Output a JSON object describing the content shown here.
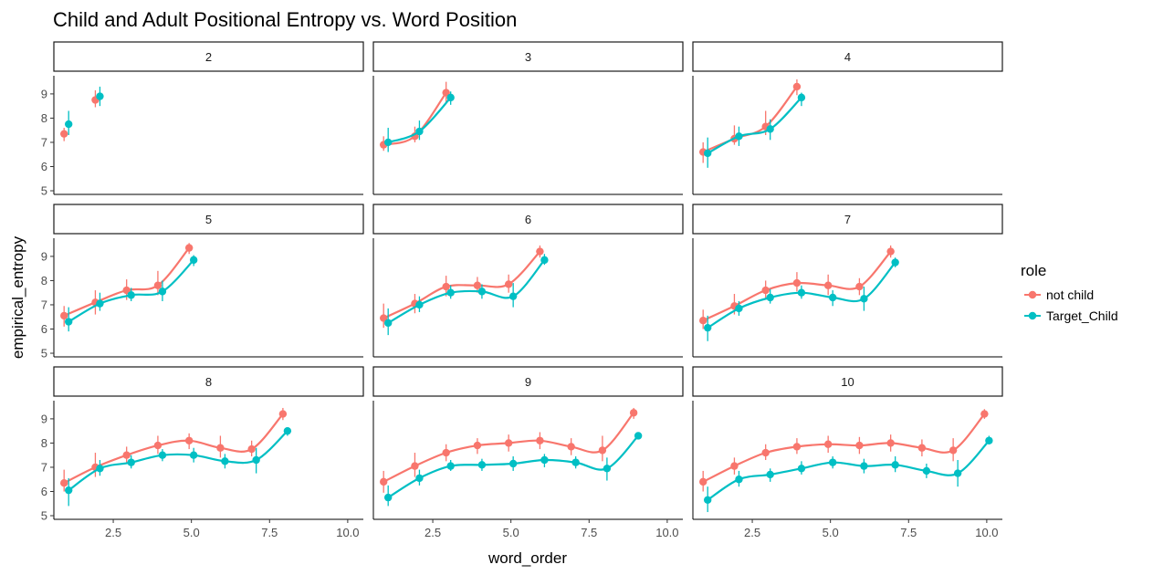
{
  "chart_data": {
    "type": "scatter",
    "title": "Child and Adult Positional Entropy vs. Word Position",
    "xlabel": "word_order",
    "ylabel": "empirical_entropy",
    "xlim": [
      0.6,
      10.5
    ],
    "ylim": [
      4.85,
      9.75
    ],
    "x_ticks": [
      "2.5",
      "5.0",
      "7.5",
      "10.0"
    ],
    "y_ticks": [
      "5",
      "6",
      "7",
      "8",
      "9"
    ],
    "legend": {
      "title": "role",
      "placement": "right"
    },
    "series_meta": [
      {
        "name": "not child",
        "color": "#F8766D"
      },
      {
        "name": "Target_Child",
        "color": "#00BFC4"
      }
    ],
    "panels": [
      {
        "label": "2",
        "series": [
          {
            "name": "not child",
            "points": [
              [
                1,
                7.35,
                7.05,
                7.6
              ],
              [
                2,
                8.75,
                8.45,
                9.15
              ]
            ]
          },
          {
            "name": "Target_Child",
            "points": [
              [
                1,
                7.75,
                7.3,
                8.3
              ],
              [
                2,
                8.9,
                8.5,
                9.3
              ]
            ]
          }
        ]
      },
      {
        "label": "3",
        "series": [
          {
            "name": "not child",
            "points": [
              [
                1,
                6.9,
                6.65,
                7.25
              ],
              [
                2,
                7.25,
                7.0,
                7.65
              ],
              [
                3,
                9.05,
                8.6,
                9.5
              ]
            ]
          },
          {
            "name": "Target_Child",
            "points": [
              [
                1,
                7.0,
                6.6,
                7.6
              ],
              [
                2,
                7.45,
                7.1,
                7.9
              ],
              [
                3,
                8.85,
                8.55,
                9.1
              ]
            ]
          }
        ]
      },
      {
        "label": "4",
        "series": [
          {
            "name": "not child",
            "points": [
              [
                1,
                6.6,
                6.15,
                7.0
              ],
              [
                2,
                7.15,
                6.9,
                7.7
              ],
              [
                3,
                7.65,
                7.3,
                8.3
              ],
              [
                4,
                9.3,
                8.95,
                9.6
              ]
            ]
          },
          {
            "name": "Target_Child",
            "points": [
              [
                1,
                6.55,
                5.95,
                7.2
              ],
              [
                2,
                7.25,
                6.85,
                7.65
              ],
              [
                3,
                7.55,
                7.1,
                7.95
              ],
              [
                4,
                8.85,
                8.5,
                9.05
              ]
            ]
          }
        ]
      },
      {
        "label": "5",
        "series": [
          {
            "name": "not child",
            "points": [
              [
                1,
                6.55,
                6.1,
                6.95
              ],
              [
                2,
                7.1,
                6.6,
                7.6
              ],
              [
                3,
                7.6,
                7.2,
                8.05
              ],
              [
                4,
                7.8,
                7.4,
                8.4
              ],
              [
                5,
                9.35,
                9.1,
                9.55
              ]
            ]
          },
          {
            "name": "Target_Child",
            "points": [
              [
                1,
                6.3,
                5.9,
                6.9
              ],
              [
                2,
                7.05,
                6.75,
                7.5
              ],
              [
                3,
                7.4,
                7.15,
                7.7
              ],
              [
                4,
                7.55,
                7.15,
                8.0
              ],
              [
                5,
                8.85,
                8.6,
                9.05
              ]
            ]
          }
        ]
      },
      {
        "label": "6",
        "series": [
          {
            "name": "not child",
            "points": [
              [
                1,
                6.45,
                6.05,
                7.05
              ],
              [
                2,
                7.05,
                6.65,
                7.45
              ],
              [
                3,
                7.75,
                7.35,
                8.2
              ],
              [
                4,
                7.8,
                7.5,
                8.15
              ],
              [
                5,
                7.85,
                7.5,
                8.25
              ],
              [
                6,
                9.2,
                8.95,
                9.45
              ]
            ]
          },
          {
            "name": "Target_Child",
            "points": [
              [
                1,
                6.25,
                5.75,
                6.85
              ],
              [
                2,
                7.0,
                6.7,
                7.35
              ],
              [
                3,
                7.5,
                7.25,
                7.8
              ],
              [
                4,
                7.55,
                7.25,
                7.85
              ],
              [
                5,
                7.35,
                6.9,
                7.9
              ],
              [
                6,
                8.85,
                8.65,
                9.1
              ]
            ]
          }
        ]
      },
      {
        "label": "7",
        "series": [
          {
            "name": "not child",
            "points": [
              [
                1,
                6.35,
                6.0,
                6.8
              ],
              [
                2,
                6.95,
                6.6,
                7.45
              ],
              [
                3,
                7.6,
                7.25,
                8.0
              ],
              [
                4,
                7.9,
                7.55,
                8.35
              ],
              [
                5,
                7.8,
                7.4,
                8.25
              ],
              [
                6,
                7.75,
                7.4,
                8.1
              ],
              [
                7,
                9.2,
                8.95,
                9.45
              ]
            ]
          },
          {
            "name": "Target_Child",
            "points": [
              [
                1,
                6.05,
                5.5,
                6.55
              ],
              [
                2,
                6.85,
                6.55,
                7.15
              ],
              [
                3,
                7.3,
                7.05,
                7.65
              ],
              [
                4,
                7.5,
                7.25,
                7.8
              ],
              [
                5,
                7.3,
                6.95,
                7.6
              ],
              [
                6,
                7.25,
                6.75,
                7.75
              ],
              [
                7,
                8.75,
                8.55,
                8.95
              ]
            ]
          }
        ]
      },
      {
        "label": "8",
        "series": [
          {
            "name": "not child",
            "points": [
              [
                1,
                6.35,
                6.0,
                6.9
              ],
              [
                2,
                7.0,
                6.6,
                7.6
              ],
              [
                3,
                7.5,
                7.2,
                7.85
              ],
              [
                4,
                7.9,
                7.55,
                8.3
              ],
              [
                5,
                8.1,
                7.75,
                8.4
              ],
              [
                6,
                7.8,
                7.4,
                8.3
              ],
              [
                7,
                7.75,
                7.45,
                8.1
              ],
              [
                8,
                9.2,
                8.95,
                9.45
              ]
            ]
          },
          {
            "name": "Target_Child",
            "points": [
              [
                1,
                6.05,
                5.4,
                6.55
              ],
              [
                2,
                6.95,
                6.65,
                7.3
              ],
              [
                3,
                7.2,
                6.95,
                7.5
              ],
              [
                4,
                7.5,
                7.25,
                7.75
              ],
              [
                5,
                7.5,
                7.2,
                7.8
              ],
              [
                6,
                7.25,
                6.95,
                7.55
              ],
              [
                7,
                7.3,
                6.75,
                7.8
              ],
              [
                8,
                8.5,
                8.3,
                8.65
              ]
            ]
          }
        ]
      },
      {
        "label": "9",
        "series": [
          {
            "name": "not child",
            "points": [
              [
                1,
                6.4,
                5.95,
                6.85
              ],
              [
                2,
                7.05,
                6.6,
                7.6
              ],
              [
                3,
                7.6,
                7.25,
                7.95
              ],
              [
                4,
                7.9,
                7.55,
                8.2
              ],
              [
                5,
                8.0,
                7.65,
                8.35
              ],
              [
                6,
                8.1,
                7.75,
                8.45
              ],
              [
                7,
                7.85,
                7.5,
                8.2
              ],
              [
                8,
                7.7,
                7.25,
                8.3
              ],
              [
                9,
                9.25,
                9.0,
                9.45
              ]
            ]
          },
          {
            "name": "Target_Child",
            "points": [
              [
                1,
                5.75,
                5.4,
                6.25
              ],
              [
                2,
                6.55,
                6.25,
                6.9
              ],
              [
                3,
                7.05,
                6.85,
                7.3
              ],
              [
                4,
                7.1,
                6.85,
                7.35
              ],
              [
                5,
                7.15,
                6.85,
                7.45
              ],
              [
                6,
                7.3,
                7.0,
                7.55
              ],
              [
                7,
                7.2,
                6.95,
                7.45
              ],
              [
                8,
                6.95,
                6.45,
                7.4
              ],
              [
                9,
                8.3,
                8.15,
                8.45
              ]
            ]
          }
        ]
      },
      {
        "label": "10",
        "series": [
          {
            "name": "not child",
            "points": [
              [
                1,
                6.4,
                6.0,
                6.85
              ],
              [
                2,
                7.05,
                6.7,
                7.4
              ],
              [
                3,
                7.6,
                7.3,
                7.95
              ],
              [
                4,
                7.85,
                7.55,
                8.2
              ],
              [
                5,
                7.95,
                7.6,
                8.3
              ],
              [
                6,
                7.9,
                7.55,
                8.25
              ],
              [
                7,
                8.0,
                7.65,
                8.35
              ],
              [
                8,
                7.8,
                7.45,
                8.15
              ],
              [
                9,
                7.7,
                7.25,
                8.2
              ],
              [
                10,
                9.2,
                9.0,
                9.4
              ]
            ]
          },
          {
            "name": "Target_Child",
            "points": [
              [
                1,
                5.65,
                5.15,
                6.2
              ],
              [
                2,
                6.5,
                6.2,
                6.85
              ],
              [
                3,
                6.7,
                6.4,
                6.95
              ],
              [
                4,
                6.95,
                6.7,
                7.25
              ],
              [
                5,
                7.2,
                6.95,
                7.45
              ],
              [
                6,
                7.05,
                6.75,
                7.35
              ],
              [
                7,
                7.1,
                6.8,
                7.45
              ],
              [
                8,
                6.85,
                6.55,
                7.15
              ],
              [
                9,
                6.75,
                6.2,
                7.3
              ],
              [
                10,
                8.1,
                7.95,
                8.3
              ]
            ]
          }
        ]
      }
    ]
  }
}
